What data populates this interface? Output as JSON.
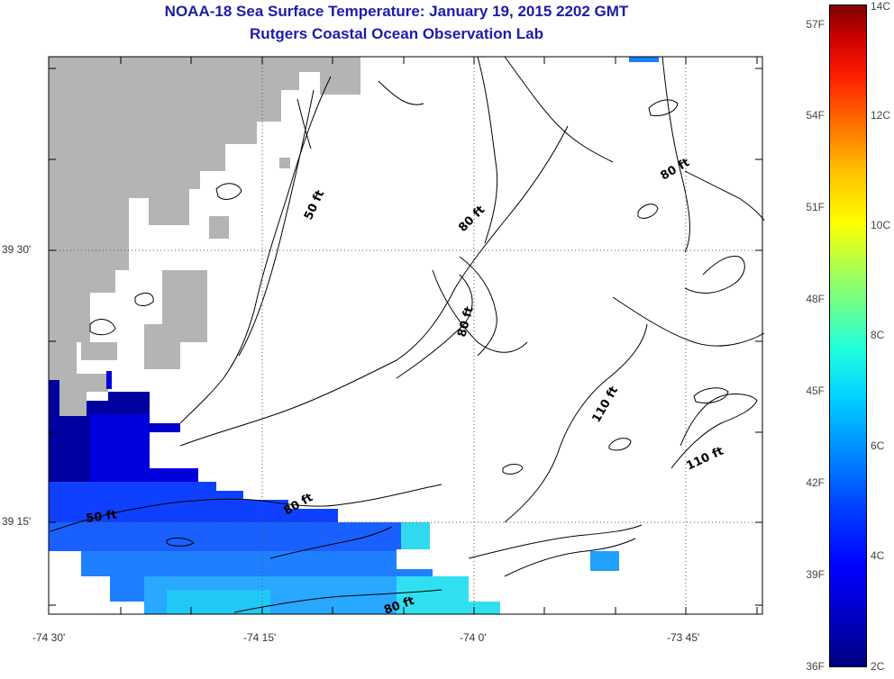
{
  "title": {
    "line1": "NOAA-18 Sea Surface Temperature:  January 19, 2015 2202 GMT",
    "line2": "Rutgers Coastal Ocean Observation Lab"
  },
  "map": {
    "lat_labels": [
      "39 30'",
      "39 15'"
    ],
    "lon_labels": [
      "-74 30'",
      "-74 15'",
      "-74 0'",
      "-73 45'"
    ],
    "contour_labels": [
      "50 ft",
      "80 ft",
      "80 ft",
      "80 ft",
      "80 ft",
      "110 ft",
      "110 ft",
      "50 ft",
      "80 ft"
    ],
    "land_color": "#b4b4b4",
    "contour_color": "#000000"
  },
  "colorbar": {
    "fahrenheit_labels": [
      "57F",
      "54F",
      "51F",
      "48F",
      "45F",
      "42F",
      "39F",
      "36F"
    ],
    "celsius_labels": [
      "14C",
      "12C",
      "10C",
      "8C",
      "6C",
      "4C",
      "2C"
    ],
    "min_color": "#00007f",
    "max_color": "#7f0000"
  }
}
